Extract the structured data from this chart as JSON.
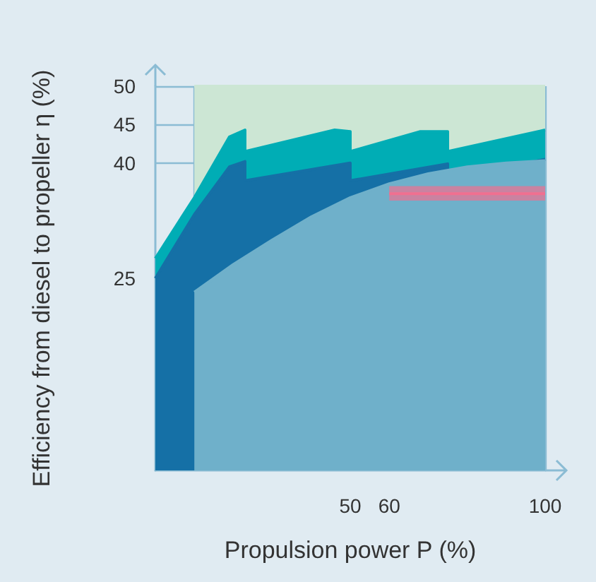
{
  "chart_data": {
    "type": "area",
    "xlabel": "Propulsion power P (%)",
    "ylabel": "Efficiency from diesel to propeller η (%)",
    "xlim": [
      0,
      100
    ],
    "ylim": [
      0,
      50
    ],
    "xticks": [
      {
        "value": 10,
        "label": null
      },
      50,
      60,
      100
    ],
    "yticks": [
      25,
      40,
      45,
      50
    ],
    "grid": true,
    "marker": "none",
    "series": [
      {
        "color": "#cce6d4",
        "x": [
          10,
          100
        ],
        "values": [
          50,
          50
        ]
      },
      {
        "color": "#00adb5",
        "x": [
          0,
          10,
          19,
          23,
          23,
          46,
          50,
          50,
          68,
          75,
          75,
          100
        ],
        "values": [
          27.6,
          35.5,
          43.4,
          44.3,
          41.5,
          44.3,
          44.1,
          41.5,
          44.1,
          44.1,
          41.5,
          44.3
        ]
      },
      {
        "color": "#1570a6",
        "x": [
          0,
          10,
          19,
          23,
          23,
          50,
          50,
          75,
          75,
          100
        ],
        "values": [
          25,
          33.3,
          39.5,
          40.2,
          37.7,
          40,
          37.7,
          39.9,
          37.7,
          40.5
        ]
      },
      {
        "color": "#6fb0ca",
        "x": [
          10,
          20,
          30,
          40,
          50,
          60,
          70,
          80,
          90,
          100
        ],
        "values": [
          23.2,
          26.8,
          30,
          33,
          35.5,
          37.3,
          38.6,
          39.5,
          40,
          40.3
        ]
      },
      {
        "type": "line",
        "color": "#f07090",
        "x": [
          60,
          100
        ],
        "values": [
          36,
          36
        ],
        "lower": [
          35.1,
          35.1
        ],
        "upper": [
          37,
          37
        ]
      }
    ]
  }
}
